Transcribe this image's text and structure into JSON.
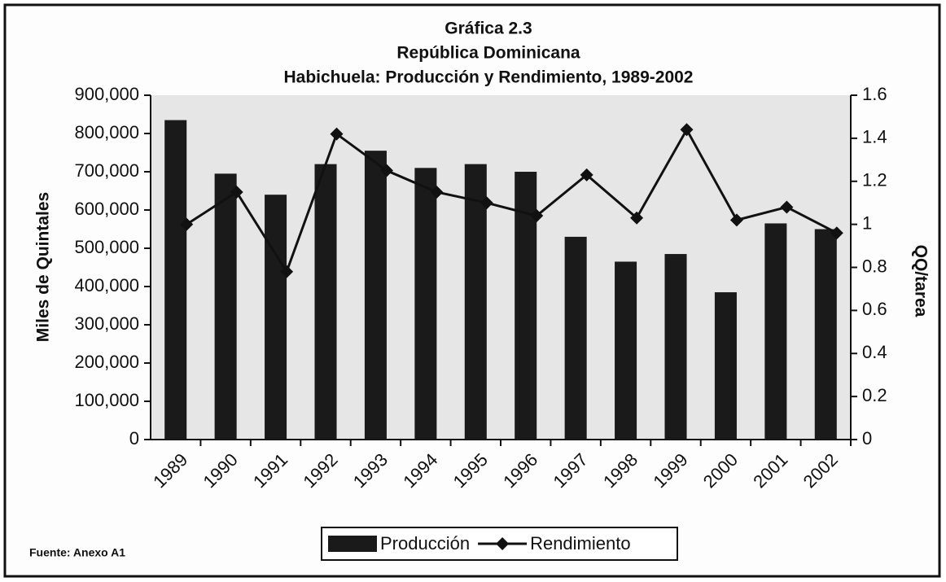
{
  "chart_data": {
    "type": "bar_line",
    "title": "Gráfica 2.3",
    "subtitles": [
      "República Dominicana",
      "Habichuela: Producción y Rendimiento, 1989-2002"
    ],
    "y_label": "Miles de Quintales",
    "y2_label": "QQ/tarea",
    "source": "Fuente: Anexo A1",
    "categories": [
      "1989",
      "1990",
      "1991",
      "1992",
      "1993",
      "1994",
      "1995",
      "1996",
      "1997",
      "1998",
      "1999",
      "2000",
      "2001",
      "2002"
    ],
    "series": [
      {
        "name": "Producción",
        "type": "bar",
        "color": "#1a1a1a",
        "values": [
          835000,
          695000,
          640000,
          720000,
          755000,
          710000,
          720000,
          700000,
          530000,
          465000,
          485000,
          385000,
          565000,
          550000
        ]
      },
      {
        "name": "Rendimiento",
        "type": "line",
        "axis": "y2",
        "color": "#111111",
        "values": [
          1.0,
          1.15,
          0.78,
          1.42,
          1.25,
          1.15,
          1.1,
          1.04,
          1.23,
          1.03,
          1.44,
          1.02,
          1.08,
          0.96
        ]
      }
    ],
    "ylim": [
      0,
      900000
    ],
    "yticks": [
      0,
      {
        "value": 100000,
        "label": "100,000"
      },
      {
        "value": 200000,
        "label": "200,000"
      },
      {
        "value": 300000,
        "label": "300,000"
      },
      {
        "value": 400000,
        "label": "400,000"
      },
      {
        "value": 500000,
        "label": "500,000"
      },
      {
        "value": 600000,
        "label": "600,000"
      },
      {
        "value": 700000,
        "label": "700,000"
      },
      {
        "value": 800000,
        "label": "800,000"
      },
      {
        "value": 900000,
        "label": "900,000"
      }
    ],
    "y2lim": [
      0,
      1.6
    ],
    "y2ticks": [
      0,
      0.2,
      0.4,
      0.6,
      0.8,
      1,
      1.2,
      1.4,
      1.6
    ],
    "grid": false,
    "legend": "bottom"
  }
}
